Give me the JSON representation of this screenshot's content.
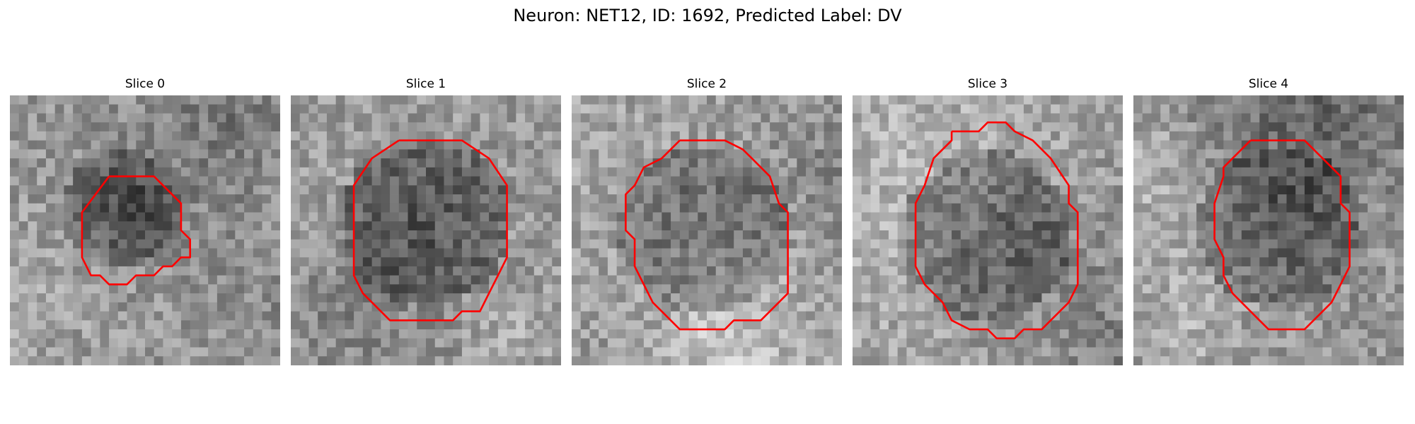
{
  "figure": {
    "title": "Neuron: NET12, ID: 1692, Predicted Label: DV",
    "contour_color": "#ff0000",
    "grid_size": 30,
    "slices": [
      {
        "title": "Slice 0",
        "base_gray": 150,
        "spot": {
          "cx": 12.5,
          "cy": 12.5,
          "r": 6.5,
          "depth": 55
        },
        "contour": [
          [
            11,
            9
          ],
          [
            16,
            9
          ],
          [
            19,
            12
          ],
          [
            19,
            15
          ],
          [
            20,
            16
          ],
          [
            20,
            18
          ],
          [
            19,
            18
          ],
          [
            18,
            19
          ],
          [
            17,
            19
          ],
          [
            16,
            20
          ],
          [
            14,
            20
          ],
          [
            13,
            21
          ],
          [
            11,
            21
          ],
          [
            10,
            20
          ],
          [
            9,
            20
          ],
          [
            8,
            18
          ],
          [
            8,
            13
          ],
          [
            11,
            9
          ]
        ]
      },
      {
        "title": "Slice 1",
        "base_gray": 155,
        "spot": {
          "cx": 15,
          "cy": 14,
          "r": 9.5,
          "depth": 70
        },
        "contour": [
          [
            12,
            5
          ],
          [
            19,
            5
          ],
          [
            22,
            7
          ],
          [
            24,
            10
          ],
          [
            24,
            18
          ],
          [
            23,
            20
          ],
          [
            22,
            22
          ],
          [
            21,
            24
          ],
          [
            19,
            24
          ],
          [
            18,
            25
          ],
          [
            11,
            25
          ],
          [
            8,
            22
          ],
          [
            7,
            20
          ],
          [
            7,
            10
          ],
          [
            9,
            7
          ],
          [
            12,
            5
          ]
        ]
      },
      {
        "title": "Slice 2",
        "base_gray": 160,
        "spot": {
          "cx": 14.5,
          "cy": 15,
          "r": 9.5,
          "depth": 60
        },
        "contour": [
          [
            12,
            5
          ],
          [
            17,
            5
          ],
          [
            19,
            6
          ],
          [
            20,
            7
          ],
          [
            22,
            9
          ],
          [
            23,
            12
          ],
          [
            24,
            13
          ],
          [
            24,
            22
          ],
          [
            21,
            25
          ],
          [
            18,
            25
          ],
          [
            17,
            26
          ],
          [
            12,
            26
          ],
          [
            10,
            24
          ],
          [
            9,
            23
          ],
          [
            8,
            21
          ],
          [
            7,
            19
          ],
          [
            7,
            16
          ],
          [
            6,
            15
          ],
          [
            6,
            11
          ],
          [
            7,
            10
          ],
          [
            8,
            8
          ],
          [
            10,
            7
          ],
          [
            12,
            5
          ]
        ]
      },
      {
        "title": "Slice 3",
        "base_gray": 158,
        "spot": {
          "cx": 15,
          "cy": 15.5,
          "r": 9.5,
          "depth": 60
        },
        "contour": [
          [
            11,
            4
          ],
          [
            14,
            4
          ],
          [
            15,
            3
          ],
          [
            17,
            3
          ],
          [
            18,
            4
          ],
          [
            20,
            5
          ],
          [
            22,
            7
          ],
          [
            24,
            10
          ],
          [
            24,
            12
          ],
          [
            25,
            13
          ],
          [
            25,
            21
          ],
          [
            24,
            23
          ],
          [
            23,
            24
          ],
          [
            22,
            25
          ],
          [
            21,
            26
          ],
          [
            19,
            26
          ],
          [
            18,
            27
          ],
          [
            16,
            27
          ],
          [
            15,
            26
          ],
          [
            13,
            26
          ],
          [
            11,
            25
          ],
          [
            10,
            23
          ],
          [
            8,
            21
          ],
          [
            7,
            19
          ],
          [
            7,
            12
          ],
          [
            8,
            10
          ],
          [
            9,
            7
          ],
          [
            11,
            5
          ],
          [
            11,
            4
          ]
        ]
      },
      {
        "title": "Slice 4",
        "base_gray": 150,
        "spot": {
          "cx": 16,
          "cy": 14.5,
          "r": 9,
          "depth": 55
        },
        "contour": [
          [
            13,
            5
          ],
          [
            19,
            5
          ],
          [
            21,
            7
          ],
          [
            23,
            9
          ],
          [
            23,
            12
          ],
          [
            24,
            13
          ],
          [
            24,
            19
          ],
          [
            23,
            21
          ],
          [
            22,
            23
          ],
          [
            20,
            25
          ],
          [
            19,
            26
          ],
          [
            15,
            26
          ],
          [
            13,
            24
          ],
          [
            11,
            22
          ],
          [
            10,
            20
          ],
          [
            10,
            18
          ],
          [
            9,
            16
          ],
          [
            9,
            12
          ],
          [
            10,
            9
          ],
          [
            10,
            8
          ],
          [
            11,
            7
          ],
          [
            13,
            5
          ]
        ]
      }
    ]
  }
}
